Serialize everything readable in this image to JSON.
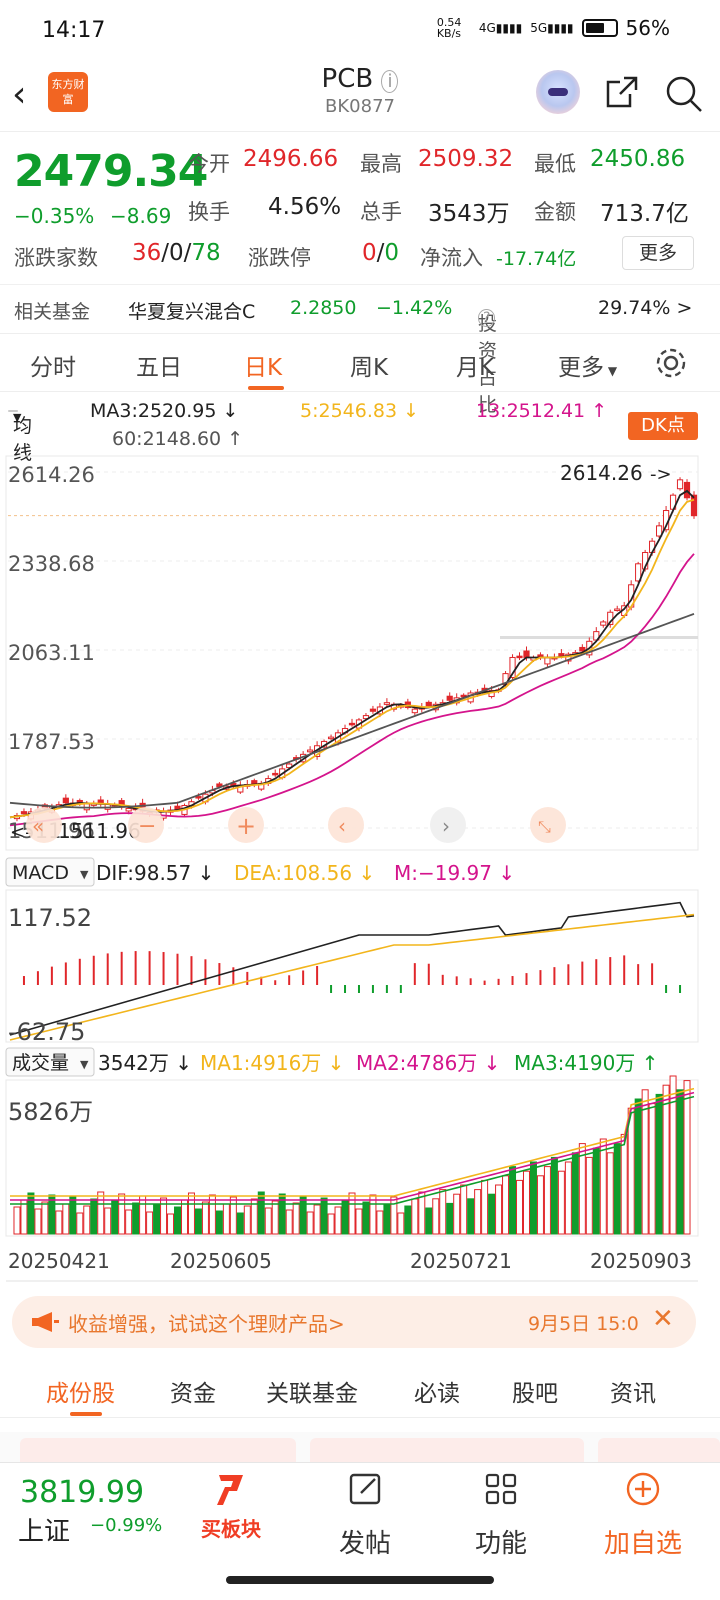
{
  "status_bar": {
    "time": "14:17",
    "net_speed": "0.54 KB/s",
    "net1": "4G",
    "net2": "5G",
    "battery": "56%"
  },
  "header": {
    "logo_text": "东方财富",
    "title": "PCB",
    "code": "BK0877"
  },
  "quote": {
    "price": "2479.34",
    "change_pct": "−0.35%",
    "change_abs": "−8.69",
    "open_label": "今开",
    "open": "2496.66",
    "high_label": "最高",
    "high": "2509.32",
    "low_label": "最低",
    "low": "2450.86",
    "turnover_label": "换手",
    "turnover": "4.56%",
    "volume_label": "总手",
    "volume": "3543万",
    "amount_label": "金额",
    "amount": "713.7亿",
    "updown_label": "涨跌家数",
    "up_count": "36",
    "flat_count": "0",
    "down_count": "78",
    "limit_label": "涨跌停",
    "limit_up": "0",
    "limit_down": "0",
    "netflow_label": "净流入",
    "netflow": "-17.74亿",
    "more_label": "更多"
  },
  "fund": {
    "label": "相关基金",
    "name": "华夏复兴混合C",
    "nav": "2.2850",
    "chg": "−1.42%",
    "ratio_label": "投资占比",
    "ratio": "29.74% >"
  },
  "period_tabs": [
    "分时",
    "五日",
    "日K",
    "周K",
    "月K",
    "更多"
  ],
  "ma_legend": {
    "mode": "均线",
    "ma3": "MA3:2520.95 ↓",
    "ma5": "5:2546.83 ↓",
    "ma13": "13:2512.41 ↑",
    "ma60": "60:2148.60 ↑",
    "dk": "DK点"
  },
  "chart_data": [
    {
      "type": "candlestick",
      "title": "",
      "y_ticks": [
        "2614.26",
        "2338.68",
        "2063.11",
        "1787.53",
        "1511.96"
      ],
      "ylim": [
        1511.96,
        2614.26
      ],
      "max_label": "2614.26",
      "min_label": "1511.96",
      "x_ticks": [
        "20250421",
        "20250605",
        "20250721",
        "20250903"
      ],
      "series": [
        {
          "name": "MA3",
          "color": "#222222"
        },
        {
          "name": "5",
          "color": "#f2b51c"
        },
        {
          "name": "13",
          "color": "#d4148c"
        },
        {
          "name": "60",
          "color": "#555555"
        }
      ]
    },
    {
      "type": "line",
      "title": "MACD",
      "dif": "DIF:98.57 ↓",
      "dea": "DEA:108.56 ↓",
      "m": "M:−19.97 ↓",
      "y_ticks": [
        "117.52",
        "-62.75"
      ]
    },
    {
      "type": "bar",
      "title": "成交量",
      "current": "3542万 ↓",
      "ma1": "MA1:4916万 ↓",
      "ma2": "MA2:4786万 ↓",
      "ma3": "MA3:4190万 ↑",
      "y_ticks": [
        "5826万"
      ]
    }
  ],
  "promo": {
    "text": "收益增强，试试这个理财产品>",
    "date": "9月5日 15:0"
  },
  "bottom_tabs": [
    "成份股",
    "资金",
    "关联基金",
    "必读",
    "股吧",
    "资讯"
  ],
  "bottom_bar": {
    "index_value": "3819.99",
    "index_name": "上证",
    "index_chg": "−0.99%",
    "buy_label": "买板块",
    "post_label": "发帖",
    "func_label": "功能",
    "add_label": "加自选"
  }
}
